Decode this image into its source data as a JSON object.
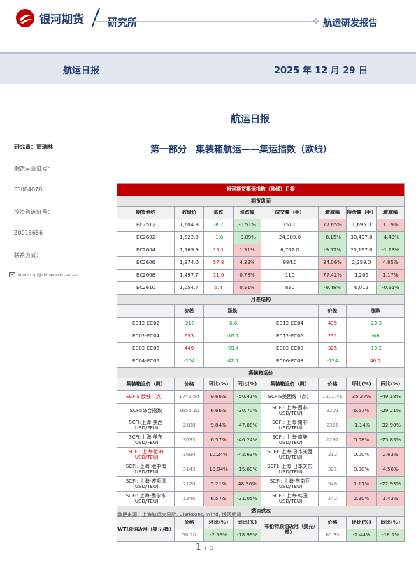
{
  "header": {
    "logo_text": "银河期货",
    "institute": "研究所",
    "report_type": "航运研发报告"
  },
  "band": {
    "title": "航运日报",
    "date": "2025 年 12 月 29 日"
  },
  "sidebar": {
    "researcher": "研究员：贾瑞林",
    "futures_cert_label": "期货从业证号：",
    "futures_cert": "F3084078",
    "invest_cert_label": "投资咨询证号：",
    "invest_cert": "Z0018656",
    "contact_label": "联系方式：",
    "email": "jiaruilin_qh@chinastock.com.cn"
  },
  "main_title": "航运日报",
  "section_title": "第一部分　集装箱航运——集运指数（欧线）",
  "table": {
    "title": "银河期货集运指数（欧线）日报",
    "futures": {
      "section": "期货盘面",
      "headers": [
        "期货合约",
        "收盘价",
        "涨跌",
        "涨跌幅",
        "成交量（手）",
        "增减幅",
        "持仓量（手）",
        "增减幅"
      ],
      "rows": [
        {
          "c": "EC2512",
          "close": "1,604.8",
          "chg": "-8.2",
          "pct": "-0.51%",
          "vol": "151.0",
          "vol_pct": "77.65%",
          "oi": "1,695.0",
          "oi_pct": "1.19%"
        },
        {
          "c": "EC2602",
          "close": "1,822.9",
          "chg": "-1.6",
          "pct": "-0.09%",
          "vol": "24,389.0",
          "vol_pct": "-8.15%",
          "oi": "30,437.0",
          "oi_pct": "-4.43%"
        },
        {
          "c": "EC2604",
          "close": "1,169.9",
          "chg": "15.1",
          "pct": "1.31%",
          "vol": "6,762.0",
          "vol_pct": "-9.57%",
          "oi": "21,197.0",
          "oi_pct": "-1.23%"
        },
        {
          "c": "EC2606",
          "close": "1,374.0",
          "chg": "57.8",
          "pct": "4.39%",
          "vol": "984.0",
          "vol_pct": "34.06%",
          "oi": "2,359.0",
          "oi_pct": "4.85%"
        },
        {
          "c": "EC2608",
          "close": "1,497.7",
          "chg": "11.6",
          "pct": "0.78%",
          "vol": "110",
          "vol_pct": "77.42%",
          "oi": "1,206",
          "oi_pct": "1.17%"
        },
        {
          "c": "EC2610",
          "close": "1,054.7",
          "chg": "5.4",
          "pct": "0.51%",
          "vol": "850",
          "vol_pct": "-9.48%",
          "oi": "6,012",
          "oi_pct": "-0.61%"
        }
      ]
    },
    "spread": {
      "section": "月差结构",
      "headers": [
        "",
        "价差",
        "涨跌",
        "",
        "价差",
        "涨跌"
      ],
      "rows": [
        {
          "a": "EC12-EC02",
          "ap": "-218",
          "ac": "-6.6",
          "b": "EC12-EC04",
          "bp": "435",
          "bc": "-23.3"
        },
        {
          "a": "EC02-EC04",
          "ap": "653",
          "ac": "-16.7",
          "b": "EC12-EC06",
          "bp": "231",
          "bc": "-66"
        },
        {
          "a": "EC02-EC06",
          "ap": "449",
          "ac": "-59.4",
          "b": "EC02-EC08",
          "bp": "325",
          "bc": "-13.2"
        },
        {
          "a": "EC04-EC06",
          "ap": "-204",
          "ac": "-42.7",
          "b": "EC06-EC08",
          "bp": "-124",
          "bc": "46.2"
        }
      ]
    },
    "freight": {
      "section": "集装箱运价",
      "headers": [
        "集装箱运价（周）",
        "价格",
        "环比(%)",
        "同比(%)",
        "集装箱运价（周）",
        "价格",
        "环比(%)",
        "同比(%)"
      ],
      "rows": [
        {
          "a": "SCFIS 欧线（点）",
          "ap": "1742.64",
          "am": "9.66%",
          "ay": "-50.41%",
          "b": "SCFIS美西线（点）",
          "bp": "1301.41",
          "bm": "35.27%",
          "by": "-49.18%"
        },
        {
          "a": "SCFI:综合指数",
          "ap": "1656.32",
          "am": "6.66%",
          "ay": "-30.70%",
          "b": "SCFI: 上海-西非 (USD/TEU)",
          "bp": "3201",
          "bm": "6.57%",
          "by": "-29.21%"
        },
        {
          "a": "SCFI:上海-美西 (USD/FEU)",
          "ap": "2188",
          "am": "9.84%",
          "ay": "-47.88%",
          "b": "SCFI: 上海-南非 (USD/TEU)",
          "bp": "2356",
          "bm": "-1.14%",
          "by": "-32.90%"
        },
        {
          "a": "SCFI:上海-美东 (USD/FEU)",
          "ap": "3033",
          "am": "6.57%",
          "ay": "-46.24%",
          "b": "SCFI: 上海-南美 (USD/TEU)",
          "bp": "1292",
          "bm": "0.08%",
          "by": "-75.85%"
        },
        {
          "a": "SCFI: 上海-欧洲 (USD/TEU)",
          "ap": "1690",
          "am": "10.24%",
          "ay": "-42.63%",
          "b": "SCFI: 上海-日本关西 (USD/TEU)",
          "bp": "312",
          "bm": "0.00%",
          "by": "2.63%"
        },
        {
          "a": "SCFI: 上海-地中海 (USD/TEU)",
          "ap": "3143",
          "am": "10.94%",
          "ay": "-15.80%",
          "b": "SCFI: 上海-日本关东 (USD/TEU)",
          "bp": "321",
          "bm": "0.00%",
          "by": "4.56%"
        },
        {
          "a": "SCFI: 上海-波斯湾 (USD/TEU)",
          "ap": "2120",
          "am": "5.21%",
          "ay": "48.36%",
          "b": "SCFI: 上海-东南亚 (USD/TEU)",
          "bp": "548",
          "bm": "1.11%",
          "by": "-22.93%"
        },
        {
          "a": "SCFI: 上海-墨尔本 (USD/TEU)",
          "ap": "1346",
          "am": "6.57%",
          "ay": "-31.05%",
          "b": "SCFI: 上海-韩国 (USD/TEU)",
          "bp": "142",
          "bm": "2.90%",
          "by": "1.43%"
        }
      ]
    },
    "fuel": {
      "section": "燃油成本",
      "headers": [
        "价格",
        "环比(%)",
        "同比(%)",
        "价格",
        "环比(%)",
        "同比(%)"
      ],
      "a": "WTI原油近月（美元/桶）",
      "ap": "56.70",
      "am": "-2.53%",
      "ay": "-18.99%",
      "b": "布伦特原油近月（美元/桶）",
      "bp": "60.33",
      "bm": "-2.44%",
      "by": "-18.1%"
    }
  },
  "source": "数据来源：上海航运交易所, Clarksons, Wind, 银河期货",
  "pager": {
    "current": "1",
    "sep": "/",
    "total": "5"
  },
  "colors": {
    "brand": "#1f3a6e",
    "title_red": "#c00000",
    "up_bg": "#f6c9cc",
    "down_bg": "#cdeccf"
  }
}
